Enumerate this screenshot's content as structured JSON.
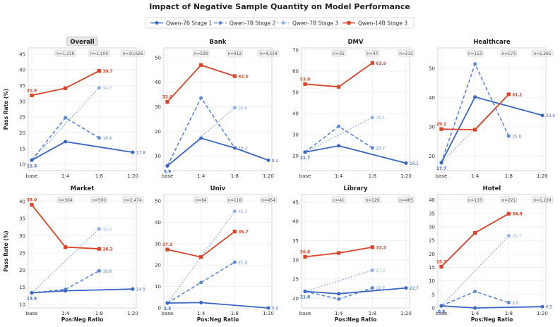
{
  "figure": {
    "title": "Impact of Negative Sample Quantity on Model Performance",
    "ylabel": "Pass Rate (%)",
    "xlabel": "Pos:Neg Ratio"
  },
  "legend": {
    "placement": "top-center",
    "entries": [
      {
        "label": "Qwen-7B Stage 1",
        "color": "#3a66c4",
        "dash": "solid",
        "marker": "circle"
      },
      {
        "label": "Qwen-7B Stage 2",
        "color": "#5b87d6",
        "dash": "dashed",
        "marker": "circle"
      },
      {
        "label": "Qwen-7B Stage 3",
        "color": "#8eaee6",
        "dash": "dotted",
        "marker": "circle"
      },
      {
        "label": "Qwen-14B Stage 3",
        "color": "#d94327",
        "dash": "solid",
        "marker": "square"
      }
    ]
  },
  "chart_data": [
    {
      "type": "line",
      "title": "Overall",
      "ylim": [
        8,
        47
      ],
      "yticks": [
        10,
        15,
        20,
        25,
        30,
        35,
        40,
        45
      ],
      "highlight_title": true,
      "categories": [
        "base",
        "1:4",
        "1:8",
        "1:20"
      ],
      "counts": [
        "n=1,218",
        "n=2,100",
        "n=10,626"
      ],
      "series": [
        {
          "name": "Qwen-7B Stage 1",
          "values": [
            11.3,
            17.2,
            null,
            13.8
          ]
        },
        {
          "name": "Qwen-7B Stage 2",
          "values": [
            11.3,
            24.8,
            18.4,
            null
          ]
        },
        {
          "name": "Qwen-7B Stage 3",
          "values": [
            11.3,
            null,
            34.3,
            null
          ]
        },
        {
          "name": "Qwen-14B Stage 3",
          "values": [
            31.9,
            34.2,
            39.7,
            null
          ]
        }
      ],
      "labels": [
        {
          "series": 3,
          "index": 0,
          "text": "31.9"
        },
        {
          "series": 3,
          "index": 2,
          "text": "39.7"
        },
        {
          "series": 2,
          "index": 2,
          "text": "34.3"
        },
        {
          "series": 1,
          "index": 2,
          "text": "18.4"
        },
        {
          "series": 0,
          "index": 3,
          "text": "13.8"
        },
        {
          "series": 0,
          "index": 0,
          "text": "11.3"
        }
      ]
    },
    {
      "type": "line",
      "title": "Bank",
      "ylim": [
        4,
        54
      ],
      "yticks": [
        10,
        20,
        30,
        40,
        50
      ],
      "highlight_title": false,
      "categories": [
        "base",
        "1:4",
        "1:8",
        "1:20"
      ],
      "counts": [
        "n=528",
        "n=912",
        "n=4,524"
      ],
      "series": [
        {
          "name": "Qwen-7B Stage 1",
          "values": [
            5.9,
            17.2,
            13.2,
            8.2
          ]
        },
        {
          "name": "Qwen-7B Stage 2",
          "values": [
            5.9,
            33.6,
            13.2,
            null
          ]
        },
        {
          "name": "Qwen-7B Stage 3",
          "values": [
            5.9,
            null,
            29.6,
            null
          ]
        },
        {
          "name": "Qwen-14B Stage 3",
          "values": [
            32.0,
            47.0,
            42.5,
            null
          ]
        }
      ],
      "labels": [
        {
          "series": 3,
          "index": 0,
          "text": "32.0"
        },
        {
          "series": 3,
          "index": 2,
          "text": "42.5"
        },
        {
          "series": 2,
          "index": 2,
          "text": "29.6"
        },
        {
          "series": 1,
          "index": 2,
          "text": "13.2"
        },
        {
          "series": 0,
          "index": 3,
          "text": "8.2"
        },
        {
          "series": 0,
          "index": 0,
          "text": "5.9"
        }
      ]
    },
    {
      "type": "line",
      "title": "DMV",
      "ylim": [
        13,
        71
      ],
      "yticks": [
        20,
        30,
        40,
        50,
        60,
        70
      ],
      "highlight_title": false,
      "categories": [
        "base",
        "1:4",
        "1:8",
        "1:20"
      ],
      "counts": [
        "n=35",
        "n=47",
        "n=215"
      ],
      "series": [
        {
          "name": "Qwen-7B Stage 1",
          "values": [
            21.7,
            24.7,
            null,
            16.5
          ]
        },
        {
          "name": "Qwen-7B Stage 2",
          "values": [
            21.7,
            33.9,
            23.7,
            null
          ]
        },
        {
          "name": "Qwen-7B Stage 3",
          "values": [
            21.7,
            null,
            38.1,
            null
          ]
        },
        {
          "name": "Qwen-14B Stage 3",
          "values": [
            53.9,
            52.6,
            63.9,
            null
          ]
        }
      ],
      "labels": [
        {
          "series": 3,
          "index": 0,
          "text": "53.9"
        },
        {
          "series": 3,
          "index": 2,
          "text": "63.9"
        },
        {
          "series": 2,
          "index": 2,
          "text": "38.1"
        },
        {
          "series": 1,
          "index": 2,
          "text": "23.7"
        },
        {
          "series": 0,
          "index": 3,
          "text": "16.5"
        },
        {
          "series": 0,
          "index": 0,
          "text": "21.7"
        }
      ]
    },
    {
      "type": "line",
      "title": "Healthcare",
      "ylim": [
        15,
        57
      ],
      "yticks": [
        20,
        30,
        40,
        50
      ],
      "highlight_title": false,
      "categories": [
        "base",
        "1:4",
        "1:8",
        "1:20"
      ],
      "counts": [
        "n=113",
        "n=173",
        "n=1,265"
      ],
      "series": [
        {
          "name": "Qwen-7B Stage 1",
          "values": [
            17.7,
            40.2,
            null,
            33.9
          ]
        },
        {
          "name": "Qwen-7B Stage 2",
          "values": [
            17.7,
            51.5,
            26.8,
            null
          ]
        },
        {
          "name": "Qwen-7B Stage 3",
          "values": [
            17.7,
            null,
            41.1,
            null
          ]
        },
        {
          "name": "Qwen-14B Stage 3",
          "values": [
            29.2,
            29.0,
            41.1,
            null
          ]
        }
      ],
      "labels": [
        {
          "series": 3,
          "index": 0,
          "text": "29.2"
        },
        {
          "series": 3,
          "index": 2,
          "text": "41.1"
        },
        {
          "series": 1,
          "index": 2,
          "text": "26.8"
        },
        {
          "series": 0,
          "index": 3,
          "text": "33.9"
        },
        {
          "series": 0,
          "index": 0,
          "text": "17.7"
        }
      ]
    },
    {
      "type": "line",
      "title": "Market",
      "ylim": [
        9,
        42
      ],
      "yticks": [
        10,
        15,
        20,
        25,
        30,
        35,
        40
      ],
      "highlight_title": false,
      "categories": [
        "base",
        "1:4",
        "1:8",
        "1:20"
      ],
      "counts": [
        "n=304",
        "n=500",
        "n=2,474"
      ],
      "series": [
        {
          "name": "Qwen-7B Stage 1",
          "values": [
            13.4,
            14.0,
            null,
            14.5
          ]
        },
        {
          "name": "Qwen-7B Stage 2",
          "values": [
            13.4,
            14.4,
            19.8,
            null
          ]
        },
        {
          "name": "Qwen-7B Stage 3",
          "values": [
            13.4,
            null,
            32.0,
            null
          ]
        },
        {
          "name": "Qwen-14B Stage 3",
          "values": [
            39.0,
            26.7,
            26.2,
            null
          ]
        }
      ],
      "labels": [
        {
          "series": 3,
          "index": 0,
          "text": "39.0"
        },
        {
          "series": 3,
          "index": 2,
          "text": "26.2"
        },
        {
          "series": 2,
          "index": 2,
          "text": "32.0"
        },
        {
          "series": 1,
          "index": 2,
          "text": "19.8"
        },
        {
          "series": 0,
          "index": 3,
          "text": "14.5"
        },
        {
          "series": 0,
          "index": 0,
          "text": "13.4"
        }
      ]
    },
    {
      "type": "line",
      "title": "Univ",
      "ylim": [
        0,
        53
      ],
      "yticks": [
        0,
        10,
        20,
        30,
        40,
        50
      ],
      "highlight_title": false,
      "categories": [
        "base",
        "1:4",
        "1:8",
        "1:20"
      ],
      "counts": [
        "n=84",
        "n=118",
        "n=454"
      ],
      "series": [
        {
          "name": "Qwen-7B Stage 1",
          "values": [
            2.3,
            2.5,
            null,
            0.0
          ]
        },
        {
          "name": "Qwen-7B Stage 2",
          "values": [
            2.3,
            11.9,
            21.4,
            null
          ]
        },
        {
          "name": "Qwen-7B Stage 3",
          "values": [
            2.3,
            null,
            45.2,
            null
          ]
        },
        {
          "name": "Qwen-14B Stage 3",
          "values": [
            27.3,
            23.8,
            35.7,
            null
          ]
        }
      ],
      "labels": [
        {
          "series": 3,
          "index": 0,
          "text": "27.3"
        },
        {
          "series": 3,
          "index": 2,
          "text": "35.7"
        },
        {
          "series": 2,
          "index": 2,
          "text": "45.2"
        },
        {
          "series": 1,
          "index": 2,
          "text": "21.4"
        },
        {
          "series": 0,
          "index": 3,
          "text": "0.0"
        },
        {
          "series": 0,
          "index": 0,
          "text": "2.3"
        }
      ]
    },
    {
      "type": "line",
      "title": "Library",
      "ylim": [
        17.5,
        47
      ],
      "yticks": [
        20,
        25,
        30,
        35,
        40,
        45
      ],
      "highlight_title": false,
      "categories": [
        "base",
        "1:4",
        "1:8",
        "1:20"
      ],
      "counts": [
        "n=41",
        "n=129",
        "n=465"
      ],
      "series": [
        {
          "name": "Qwen-7B Stage 1",
          "values": [
            21.8,
            21.2,
            null,
            22.7
          ]
        },
        {
          "name": "Qwen-7B Stage 2",
          "values": [
            21.8,
            19.8,
            22.7,
            null
          ]
        },
        {
          "name": "Qwen-7B Stage 3",
          "values": [
            21.8,
            null,
            27.3,
            null
          ]
        },
        {
          "name": "Qwen-14B Stage 3",
          "values": [
            30.8,
            31.8,
            33.3,
            null
          ]
        }
      ],
      "labels": [
        {
          "series": 3,
          "index": 0,
          "text": "30.8"
        },
        {
          "series": 3,
          "index": 2,
          "text": "33.3"
        },
        {
          "series": 2,
          "index": 2,
          "text": "27.3"
        },
        {
          "series": 1,
          "index": 2,
          "text": "22.7"
        },
        {
          "series": 0,
          "index": 3,
          "text": "22.7"
        },
        {
          "series": 0,
          "index": 0,
          "text": "21.8"
        }
      ]
    },
    {
      "type": "line",
      "title": "Hotel",
      "ylim": [
        0,
        42
      ],
      "yticks": [
        0,
        5,
        10,
        15,
        20,
        25,
        30,
        35,
        40
      ],
      "highlight_title": false,
      "categories": [
        "base",
        "1:4",
        "1:8",
        "1:20"
      ],
      "counts": [
        "n=133",
        "n=221",
        "n=1,229"
      ],
      "series": [
        {
          "name": "Qwen-7B Stage 1",
          "values": [
            0.8,
            0.0,
            null,
            0.5
          ]
        },
        {
          "name": "Qwen-7B Stage 2",
          "values": [
            0.8,
            6.1,
            2.0,
            null
          ]
        },
        {
          "name": "Qwen-7B Stage 3",
          "values": [
            0.8,
            null,
            26.7,
            null
          ]
        },
        {
          "name": "Qwen-14B Stage 3",
          "values": [
            15.3,
            27.8,
            34.9,
            null
          ]
        }
      ],
      "labels": [
        {
          "series": 3,
          "index": 0,
          "text": "15.3"
        },
        {
          "series": 3,
          "index": 2,
          "text": "34.9"
        },
        {
          "series": 2,
          "index": 2,
          "text": "26.7"
        },
        {
          "series": 1,
          "index": 2,
          "text": "2.0"
        },
        {
          "series": 0,
          "index": 3,
          "text": "0.5"
        },
        {
          "series": 0,
          "index": 0,
          "text": "0.8"
        }
      ]
    }
  ]
}
